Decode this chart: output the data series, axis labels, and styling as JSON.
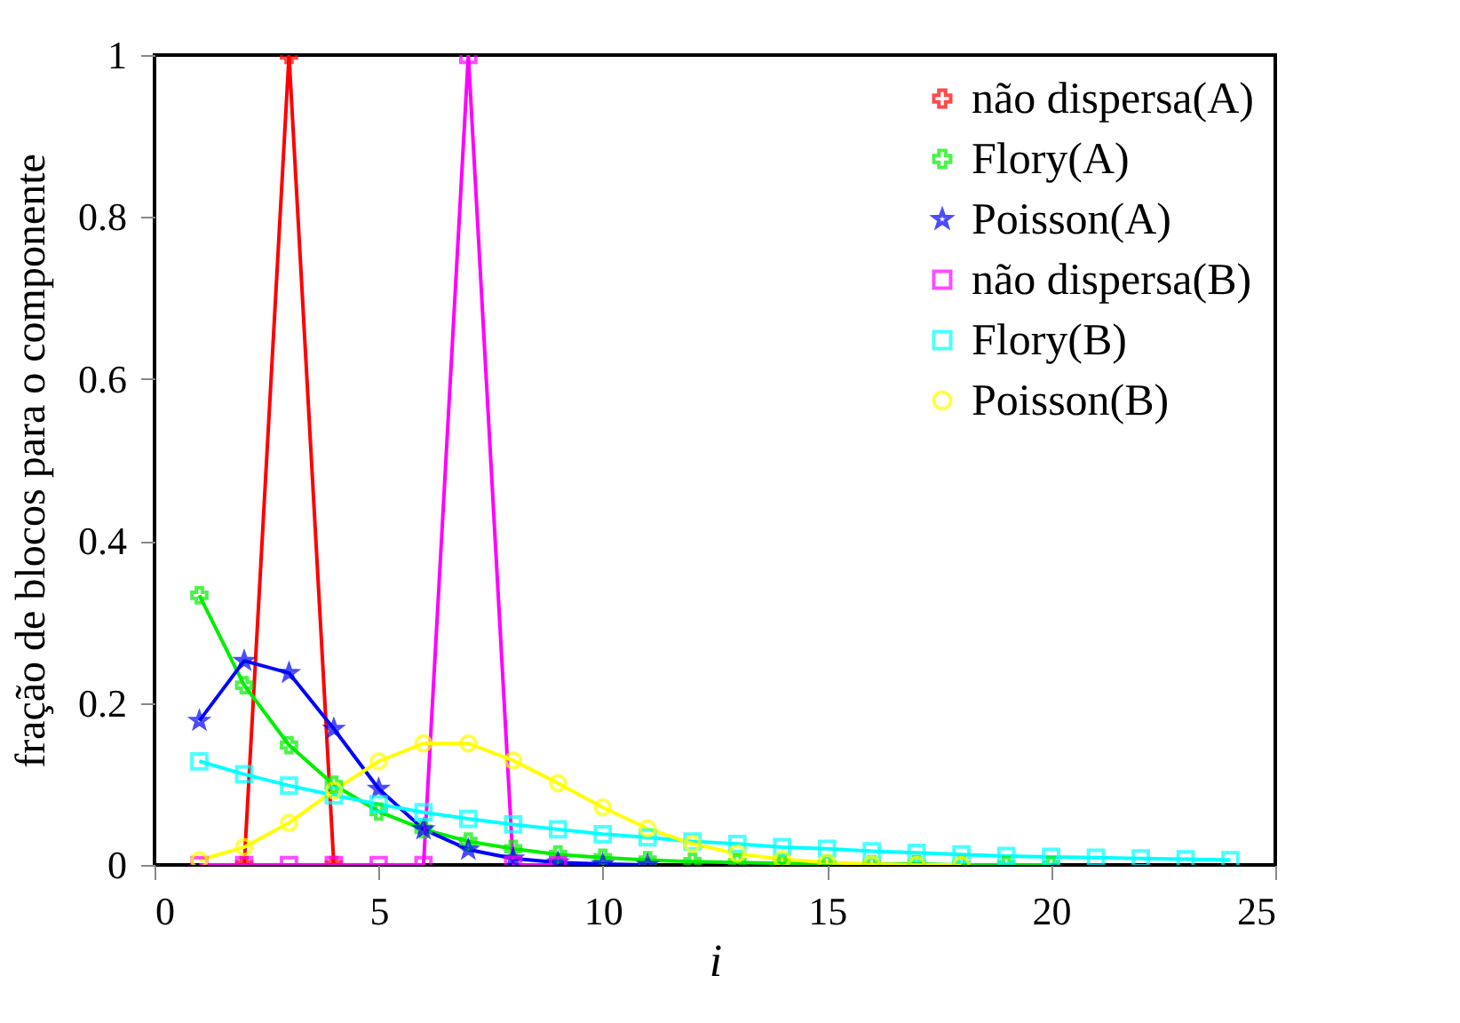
{
  "chart_data": {
    "type": "line",
    "xlabel": "i",
    "ylabel": "fração de blocos para o componente",
    "xlim": [
      0,
      25
    ],
    "xticks": [
      0,
      5,
      10,
      15,
      20,
      25
    ],
    "ylim": [
      0,
      1
    ],
    "yticks": [
      0,
      0.2,
      0.4,
      0.6,
      0.8,
      1
    ],
    "grid": false,
    "legend": "top right",
    "series": [
      {
        "name": "não dispersa(A)",
        "color": "#ff0000",
        "marker": "cross",
        "x": [
          2,
          3,
          4
        ],
        "values": [
          0,
          1,
          0
        ]
      },
      {
        "name": "Flory(A)",
        "color": "#00ee00",
        "marker": "cross",
        "x": [
          1,
          2,
          3,
          4,
          5,
          6,
          7,
          8,
          9,
          10,
          11,
          12,
          13,
          14,
          15,
          16,
          17,
          18,
          19,
          20
        ],
        "values": [
          0.333,
          0.222,
          0.148,
          0.099,
          0.066,
          0.044,
          0.029,
          0.02,
          0.013,
          0.009,
          0.006,
          0.004,
          0.003,
          0.002,
          0.001,
          0.001,
          0.001,
          0.0,
          0.0,
          0.0
        ]
      },
      {
        "name": "Poisson(A)",
        "color": "#0000ff",
        "marker": "star",
        "x": [
          1,
          2,
          3,
          4,
          5,
          6,
          7,
          8,
          9,
          10,
          11
        ],
        "values": [
          0.178,
          0.252,
          0.237,
          0.168,
          0.094,
          0.044,
          0.019,
          0.008,
          0.003,
          0.001,
          0.0
        ]
      },
      {
        "name": "não dispersa(B)",
        "color": "#ff00ff",
        "marker": "square",
        "x": [
          1,
          2,
          3,
          4,
          5,
          6,
          7,
          8,
          9
        ],
        "values": [
          0,
          0,
          0,
          0,
          0,
          0,
          1,
          0,
          0
        ]
      },
      {
        "name": "Flory(B)",
        "color": "#00ffff",
        "marker": "square",
        "x": [
          1,
          2,
          3,
          4,
          5,
          6,
          7,
          8,
          9,
          10,
          11,
          12,
          13,
          14,
          15,
          16,
          17,
          18,
          19,
          20,
          21,
          22,
          23,
          24
        ],
        "values": [
          0.128,
          0.112,
          0.098,
          0.086,
          0.075,
          0.065,
          0.057,
          0.05,
          0.044,
          0.038,
          0.034,
          0.029,
          0.026,
          0.022,
          0.02,
          0.017,
          0.015,
          0.013,
          0.011,
          0.01,
          0.009,
          0.008,
          0.007,
          0.006
        ]
      },
      {
        "name": "Poisson(B)",
        "color": "#ffff00",
        "marker": "circle",
        "x": [
          1,
          2,
          3,
          4,
          5,
          6,
          7,
          8,
          9,
          10,
          11,
          12,
          13,
          14,
          15,
          16,
          17,
          18
        ],
        "values": [
          0.006,
          0.022,
          0.052,
          0.092,
          0.128,
          0.15,
          0.15,
          0.129,
          0.101,
          0.071,
          0.045,
          0.026,
          0.014,
          0.007,
          0.003,
          0.001,
          0.0,
          0.0
        ]
      }
    ]
  }
}
